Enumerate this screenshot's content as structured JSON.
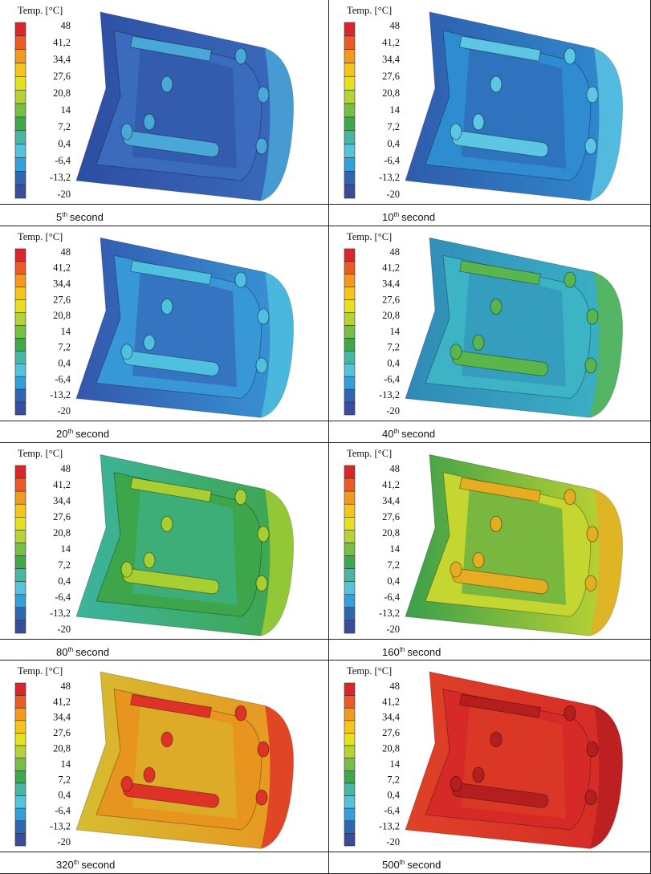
{
  "legend": {
    "title": "Temp. [°C]",
    "labels": [
      "48",
      "41,2",
      "34,4",
      "27,6",
      "20,8",
      "14",
      "7,2",
      "0,4",
      "-6,4",
      "-13,2",
      "-20"
    ]
  },
  "panels": [
    {
      "number": "5",
      "suffix": "th",
      "label": "second"
    },
    {
      "number": "10",
      "suffix": "th",
      "label": "second"
    },
    {
      "number": "20",
      "suffix": "th",
      "label": "second"
    },
    {
      "number": "40",
      "suffix": "th",
      "label": "second"
    },
    {
      "number": "80",
      "suffix": "th",
      "label": "second"
    },
    {
      "number": "160",
      "suffix": "th",
      "label": "second"
    },
    {
      "number": "320",
      "suffix": "th",
      "label": "second"
    },
    {
      "number": "500",
      "suffix": "th",
      "label": "second"
    }
  ]
}
